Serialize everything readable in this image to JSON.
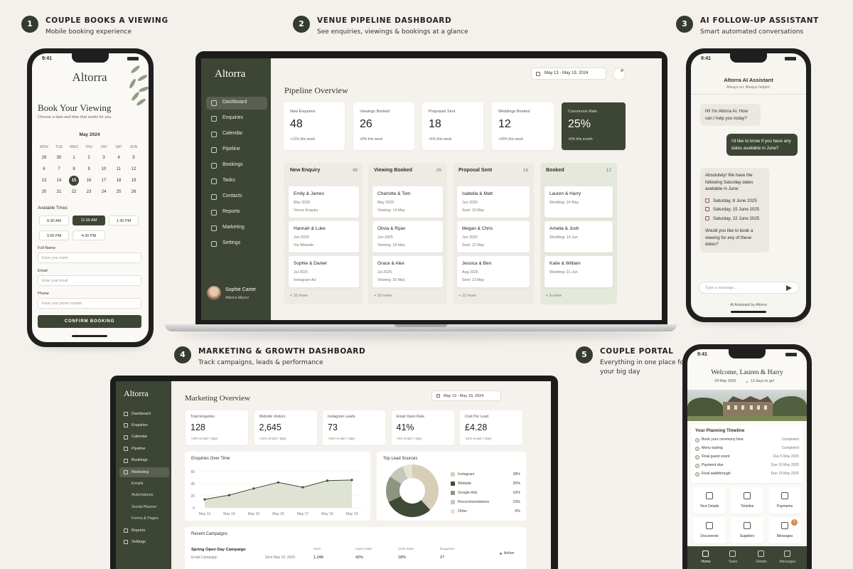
{
  "sections": [
    {
      "number": "1",
      "title": "COUPLE BOOKS A VIEWING",
      "subtitle": "Mobile booking experience"
    },
    {
      "number": "2",
      "title": "VENUE PIPELINE DASHBOARD",
      "subtitle": "See enquiries, viewings & bookings at a glance"
    },
    {
      "number": "3",
      "title": "AI FOLLOW-UP ASSISTANT",
      "subtitle": "Smart automated conversations"
    },
    {
      "number": "4",
      "title": "MARKETING & GROWTH DASHBOARD",
      "subtitle": "Track campaigns, leads & performance"
    },
    {
      "number": "5",
      "title": "COUPLE PORTAL",
      "subtitle": "Everything in one place for your big day"
    }
  ],
  "booking": {
    "time": "9:41",
    "brand": "Altorra",
    "title": "Book Your Viewing",
    "subtitle": "Choose a date and time that works for you.",
    "month": "May 2024",
    "weekdays": [
      "MON",
      "TUE",
      "WED",
      "THU",
      "FRI",
      "SAT",
      "SUN"
    ],
    "days": [
      [
        "29",
        "30",
        "1",
        "2",
        "3",
        "4",
        "5"
      ],
      [
        "6",
        "7",
        "8",
        "9",
        "10",
        "11",
        "12"
      ],
      [
        "13",
        "14",
        "15",
        "16",
        "17",
        "18",
        "19"
      ],
      [
        "20",
        "21",
        "22",
        "23",
        "24",
        "25",
        "26"
      ]
    ],
    "selected_day": "15",
    "times_label": "Available Times",
    "times": [
      "9:30 AM",
      "11:00 AM",
      "1:30 PM",
      "3:00 PM",
      "4:30 PM"
    ],
    "selected_time": "11:00 AM",
    "fields": [
      {
        "label": "Full Name",
        "placeholder": "Enter your name"
      },
      {
        "label": "Email",
        "placeholder": "Enter your email"
      },
      {
        "label": "Phone",
        "placeholder": "Enter your phone number"
      }
    ],
    "button": "CONFIRM BOOKING"
  },
  "pipeline": {
    "brand": "Altorra",
    "nav": [
      "Dashboard",
      "Enquiries",
      "Calendar",
      "Pipeline",
      "Bookings",
      "Tasks",
      "Contacts",
      "Reports",
      "Marketing",
      "Settings"
    ],
    "active": "Dashboard",
    "user": {
      "name": "Sophie Carter",
      "venue": "Altorra Manor"
    },
    "date_range": "May 13 - May 19, 2024",
    "title": "Pipeline Overview",
    "stats": [
      {
        "label": "New Enquiries",
        "value": "48",
        "change": "+12% this week"
      },
      {
        "label": "Viewings Booked",
        "value": "26",
        "change": "+8% this week"
      },
      {
        "label": "Proposals Sent",
        "value": "18",
        "change": "+5% this week"
      },
      {
        "label": "Weddings Booked",
        "value": "12",
        "change": "+20% this week"
      },
      {
        "label": "Conversion Rate",
        "value": "25%",
        "change": "+6% this month"
      }
    ],
    "highlight_stat": "Conversion Rate",
    "highlight_column": "Booked",
    "columns": [
      {
        "name": "New Enquiry",
        "count": "48",
        "more": "+ 32 more",
        "cards": [
          {
            "name": "Emily & James",
            "date": "May 2025",
            "detail": "Venue Enquiry"
          },
          {
            "name": "Hannah & Luke",
            "date": "Jun 2025",
            "detail": "Via Website"
          },
          {
            "name": "Sophie & Daniel",
            "date": "Jul 2025",
            "detail": "Instagram Ad"
          }
        ]
      },
      {
        "name": "Viewing Booked",
        "count": "26",
        "more": "+ 20 more",
        "cards": [
          {
            "name": "Charlotte & Tom",
            "date": "May 2025",
            "detail": "Viewing: 14 May"
          },
          {
            "name": "Olivia & Ryan",
            "date": "Jun 2025",
            "detail": "Viewing: 18 May"
          },
          {
            "name": "Grace & Alex",
            "date": "Jul 2025",
            "detail": "Viewing: 20 May"
          }
        ]
      },
      {
        "name": "Proposal Sent",
        "count": "18",
        "more": "+ 12 more",
        "cards": [
          {
            "name": "Isabella & Matt",
            "date": "Jun 2025",
            "detail": "Sent: 10 May"
          },
          {
            "name": "Megan & Chris",
            "date": "Jun 2025",
            "detail": "Sent: 12 May"
          },
          {
            "name": "Jessica & Ben",
            "date": "Aug 2025",
            "detail": "Sent: 13 May"
          }
        ]
      },
      {
        "name": "Booked",
        "count": "12",
        "more": "+ 9 more",
        "cards": [
          {
            "name": "Lauren & Harry",
            "detail": "Wedding: 24 May"
          },
          {
            "name": "Amelia & Josh",
            "detail": "Wedding: 14 Jun"
          },
          {
            "name": "Katie & William",
            "detail": "Wedding: 21 Jun"
          }
        ]
      }
    ]
  },
  "assistant": {
    "time": "9:41",
    "title": "Altorra AI Assistant",
    "status": "Always on. Always helpful.",
    "messages": [
      {
        "from": "bot",
        "text": "Hi! I'm Altorra AI. How can I help you today?"
      },
      {
        "from": "user",
        "text": "I'd like to know if you have any dates available in June?"
      },
      {
        "from": "bot",
        "text": "Absolutely! We have the following Saturday dates available in June:",
        "dates": [
          "Saturday, 8 June 2025",
          "Saturday, 15 June 2025",
          "Saturday, 22 June 2025"
        ],
        "text_after": "Would you like to book a viewing for any of these dates?"
      }
    ],
    "input_placeholder": "Type a message...",
    "footer": "AI Assistant by Altorra"
  },
  "marketing": {
    "brand": "Altorra",
    "nav": [
      {
        "label": "Dashboard"
      },
      {
        "label": "Enquiries"
      },
      {
        "label": "Calendar"
      },
      {
        "label": "Pipeline"
      },
      {
        "label": "Bookings"
      },
      {
        "label": "Marketing"
      },
      {
        "label": "Emails",
        "sub": true
      },
      {
        "label": "Automations",
        "sub": true
      },
      {
        "label": "Social Planner",
        "sub": true
      },
      {
        "label": "Forms & Pages",
        "sub": true
      },
      {
        "label": "Reports"
      },
      {
        "label": "Settings"
      }
    ],
    "active": "Marketing",
    "date_range": "May 13 - May 19, 2024",
    "title": "Marketing Overview",
    "stats": [
      {
        "label": "Total Enquiries",
        "value": "128",
        "change": "+18% vs last 7 days"
      },
      {
        "label": "Website Visitors",
        "value": "2,645",
        "change": "+22% vs last 7 days"
      },
      {
        "label": "Instagram Leads",
        "value": "73",
        "change": "+15% vs last 7 days"
      },
      {
        "label": "Email Open Rate",
        "value": "41%",
        "change": "+5% vs last 7 days"
      },
      {
        "label": "Cost Per Lead",
        "value": "£4.28",
        "change": "-12% vs last 7 days"
      }
    ],
    "enquiries_chart": {
      "type": "area",
      "title": "Enquiries Over Time",
      "categories": [
        "May 13",
        "May 14",
        "May 15",
        "May 16",
        "May 17",
        "May 18",
        "May 19"
      ],
      "values": [
        14,
        21,
        32,
        42,
        34,
        45,
        46
      ],
      "ylim": [
        0,
        60
      ],
      "yticks": [
        0,
        20,
        40,
        60
      ],
      "color": "#3f4a36",
      "fill": "#dfe3d4",
      "grid": true
    },
    "lead_sources": {
      "type": "donut",
      "title": "Top Lead Sources",
      "categories": [
        "Instagram",
        "Website",
        "Google Ads",
        "Recommendations",
        "Other"
      ],
      "values": [
        38,
        30,
        16,
        10,
        6
      ],
      "value_labels": [
        "38%",
        "30%",
        "16%",
        "10%",
        "6%"
      ],
      "colors": [
        "#d8cdb7",
        "#3f4a36",
        "#8c957e",
        "#c4c8b7",
        "#e7e2d6"
      ]
    },
    "campaigns": {
      "title": "Recent Campaigns",
      "columns": [
        "Sent",
        "Open Rate",
        "Click Rate",
        "Enquiries"
      ],
      "rows": [
        {
          "name": "Spring Open Day Campaign",
          "type": "Email Campaign",
          "sent_on": "Sent May 10, 2024",
          "values": [
            "1,248",
            "42%",
            "18%",
            "27"
          ],
          "status": "Active"
        }
      ]
    }
  },
  "portal": {
    "time": "9:41",
    "title": "Welcome, Lauren & Harry",
    "date": "24 May 2025",
    "countdown": "12 days to go!",
    "timeline_title": "Your Planning Timeline",
    "timeline": [
      {
        "task": "Book your ceremony time",
        "status": "Completed"
      },
      {
        "task": "Menu tasting",
        "status": "Completed"
      },
      {
        "task": "Final guest count",
        "status": "Due 5 May 2025"
      },
      {
        "task": "Payment due",
        "status": "Due 15 May 2025"
      },
      {
        "task": "Final walkthrough",
        "status": "Due 19 May 2025"
      }
    ],
    "tiles": [
      "Your Details",
      "Timeline",
      "Payments",
      "Documents",
      "Suppliers",
      "Messages"
    ],
    "messages_badge": "1",
    "bottom_nav": [
      "Home",
      "Tasks",
      "Details",
      "Messages"
    ]
  }
}
